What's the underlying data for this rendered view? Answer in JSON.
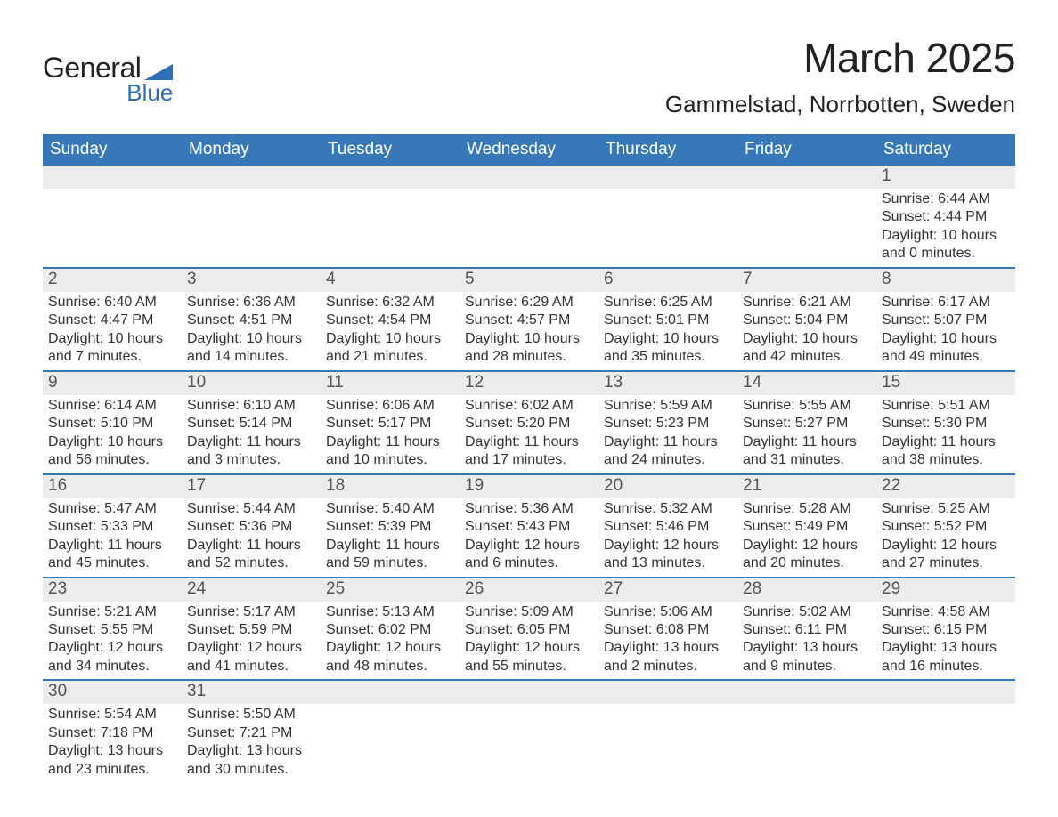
{
  "logo": {
    "text1": "General",
    "text2": "Blue",
    "shape_color": "#2d6fb5"
  },
  "title": "March 2025",
  "subtitle": "Gammelstad, Norrbotten, Sweden",
  "colors": {
    "header_bg": "#3678b8",
    "header_text": "#ffffff",
    "daynum_bg": "#ececec",
    "row_border": "#3678b8",
    "text": "#333333",
    "page_bg": "#ffffff"
  },
  "dayheaders": [
    "Sunday",
    "Monday",
    "Tuesday",
    "Wednesday",
    "Thursday",
    "Friday",
    "Saturday"
  ],
  "weeks": [
    [
      {
        "empty": true
      },
      {
        "empty": true
      },
      {
        "empty": true
      },
      {
        "empty": true
      },
      {
        "empty": true
      },
      {
        "empty": true
      },
      {
        "num": "1",
        "sunrise": "Sunrise: 6:44 AM",
        "sunset": "Sunset: 4:44 PM",
        "day1": "Daylight: 10 hours",
        "day2": "and 0 minutes."
      }
    ],
    [
      {
        "num": "2",
        "sunrise": "Sunrise: 6:40 AM",
        "sunset": "Sunset: 4:47 PM",
        "day1": "Daylight: 10 hours",
        "day2": "and 7 minutes."
      },
      {
        "num": "3",
        "sunrise": "Sunrise: 6:36 AM",
        "sunset": "Sunset: 4:51 PM",
        "day1": "Daylight: 10 hours",
        "day2": "and 14 minutes."
      },
      {
        "num": "4",
        "sunrise": "Sunrise: 6:32 AM",
        "sunset": "Sunset: 4:54 PM",
        "day1": "Daylight: 10 hours",
        "day2": "and 21 minutes."
      },
      {
        "num": "5",
        "sunrise": "Sunrise: 6:29 AM",
        "sunset": "Sunset: 4:57 PM",
        "day1": "Daylight: 10 hours",
        "day2": "and 28 minutes."
      },
      {
        "num": "6",
        "sunrise": "Sunrise: 6:25 AM",
        "sunset": "Sunset: 5:01 PM",
        "day1": "Daylight: 10 hours",
        "day2": "and 35 minutes."
      },
      {
        "num": "7",
        "sunrise": "Sunrise: 6:21 AM",
        "sunset": "Sunset: 5:04 PM",
        "day1": "Daylight: 10 hours",
        "day2": "and 42 minutes."
      },
      {
        "num": "8",
        "sunrise": "Sunrise: 6:17 AM",
        "sunset": "Sunset: 5:07 PM",
        "day1": "Daylight: 10 hours",
        "day2": "and 49 minutes."
      }
    ],
    [
      {
        "num": "9",
        "sunrise": "Sunrise: 6:14 AM",
        "sunset": "Sunset: 5:10 PM",
        "day1": "Daylight: 10 hours",
        "day2": "and 56 minutes."
      },
      {
        "num": "10",
        "sunrise": "Sunrise: 6:10 AM",
        "sunset": "Sunset: 5:14 PM",
        "day1": "Daylight: 11 hours",
        "day2": "and 3 minutes."
      },
      {
        "num": "11",
        "sunrise": "Sunrise: 6:06 AM",
        "sunset": "Sunset: 5:17 PM",
        "day1": "Daylight: 11 hours",
        "day2": "and 10 minutes."
      },
      {
        "num": "12",
        "sunrise": "Sunrise: 6:02 AM",
        "sunset": "Sunset: 5:20 PM",
        "day1": "Daylight: 11 hours",
        "day2": "and 17 minutes."
      },
      {
        "num": "13",
        "sunrise": "Sunrise: 5:59 AM",
        "sunset": "Sunset: 5:23 PM",
        "day1": "Daylight: 11 hours",
        "day2": "and 24 minutes."
      },
      {
        "num": "14",
        "sunrise": "Sunrise: 5:55 AM",
        "sunset": "Sunset: 5:27 PM",
        "day1": "Daylight: 11 hours",
        "day2": "and 31 minutes."
      },
      {
        "num": "15",
        "sunrise": "Sunrise: 5:51 AM",
        "sunset": "Sunset: 5:30 PM",
        "day1": "Daylight: 11 hours",
        "day2": "and 38 minutes."
      }
    ],
    [
      {
        "num": "16",
        "sunrise": "Sunrise: 5:47 AM",
        "sunset": "Sunset: 5:33 PM",
        "day1": "Daylight: 11 hours",
        "day2": "and 45 minutes."
      },
      {
        "num": "17",
        "sunrise": "Sunrise: 5:44 AM",
        "sunset": "Sunset: 5:36 PM",
        "day1": "Daylight: 11 hours",
        "day2": "and 52 minutes."
      },
      {
        "num": "18",
        "sunrise": "Sunrise: 5:40 AM",
        "sunset": "Sunset: 5:39 PM",
        "day1": "Daylight: 11 hours",
        "day2": "and 59 minutes."
      },
      {
        "num": "19",
        "sunrise": "Sunrise: 5:36 AM",
        "sunset": "Sunset: 5:43 PM",
        "day1": "Daylight: 12 hours",
        "day2": "and 6 minutes."
      },
      {
        "num": "20",
        "sunrise": "Sunrise: 5:32 AM",
        "sunset": "Sunset: 5:46 PM",
        "day1": "Daylight: 12 hours",
        "day2": "and 13 minutes."
      },
      {
        "num": "21",
        "sunrise": "Sunrise: 5:28 AM",
        "sunset": "Sunset: 5:49 PM",
        "day1": "Daylight: 12 hours",
        "day2": "and 20 minutes."
      },
      {
        "num": "22",
        "sunrise": "Sunrise: 5:25 AM",
        "sunset": "Sunset: 5:52 PM",
        "day1": "Daylight: 12 hours",
        "day2": "and 27 minutes."
      }
    ],
    [
      {
        "num": "23",
        "sunrise": "Sunrise: 5:21 AM",
        "sunset": "Sunset: 5:55 PM",
        "day1": "Daylight: 12 hours",
        "day2": "and 34 minutes."
      },
      {
        "num": "24",
        "sunrise": "Sunrise: 5:17 AM",
        "sunset": "Sunset: 5:59 PM",
        "day1": "Daylight: 12 hours",
        "day2": "and 41 minutes."
      },
      {
        "num": "25",
        "sunrise": "Sunrise: 5:13 AM",
        "sunset": "Sunset: 6:02 PM",
        "day1": "Daylight: 12 hours",
        "day2": "and 48 minutes."
      },
      {
        "num": "26",
        "sunrise": "Sunrise: 5:09 AM",
        "sunset": "Sunset: 6:05 PM",
        "day1": "Daylight: 12 hours",
        "day2": "and 55 minutes."
      },
      {
        "num": "27",
        "sunrise": "Sunrise: 5:06 AM",
        "sunset": "Sunset: 6:08 PM",
        "day1": "Daylight: 13 hours",
        "day2": "and 2 minutes."
      },
      {
        "num": "28",
        "sunrise": "Sunrise: 5:02 AM",
        "sunset": "Sunset: 6:11 PM",
        "day1": "Daylight: 13 hours",
        "day2": "and 9 minutes."
      },
      {
        "num": "29",
        "sunrise": "Sunrise: 4:58 AM",
        "sunset": "Sunset: 6:15 PM",
        "day1": "Daylight: 13 hours",
        "day2": "and 16 minutes."
      }
    ],
    [
      {
        "num": "30",
        "sunrise": "Sunrise: 5:54 AM",
        "sunset": "Sunset: 7:18 PM",
        "day1": "Daylight: 13 hours",
        "day2": "and 23 minutes."
      },
      {
        "num": "31",
        "sunrise": "Sunrise: 5:50 AM",
        "sunset": "Sunset: 7:21 PM",
        "day1": "Daylight: 13 hours",
        "day2": "and 30 minutes."
      },
      {
        "empty": true
      },
      {
        "empty": true
      },
      {
        "empty": true
      },
      {
        "empty": true
      },
      {
        "empty": true
      }
    ]
  ]
}
